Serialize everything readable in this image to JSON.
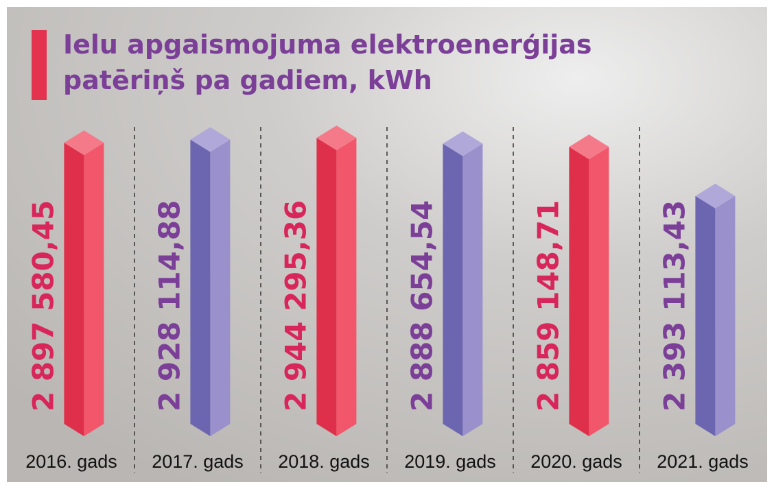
{
  "chart_data": {
    "type": "bar3d",
    "title": "Ielu apgaismojuma elektroenerģijas patēriņš pa gadiem, kWh",
    "categories": [
      "2016. gads",
      "2017. gads",
      "2018. gads",
      "2019. gads",
      "2020. gads",
      "2021. gads"
    ],
    "values": [
      2897580.45,
      2928114.88,
      2944295.36,
      2888654.54,
      2859148.71,
      2393113.43
    ],
    "value_labels": [
      "2 897 580,45",
      "2 928 114,88",
      "2 944 295,36",
      "2 888 654,54",
      "2 859 148,71",
      "2 393 113,43"
    ],
    "colors": [
      "red",
      "purple",
      "red",
      "purple",
      "red",
      "purple"
    ],
    "label_colors": [
      "#d8265b",
      "#7b3f98",
      "#d8265b",
      "#7b3f98",
      "#d8265b",
      "#7b3f98"
    ]
  }
}
